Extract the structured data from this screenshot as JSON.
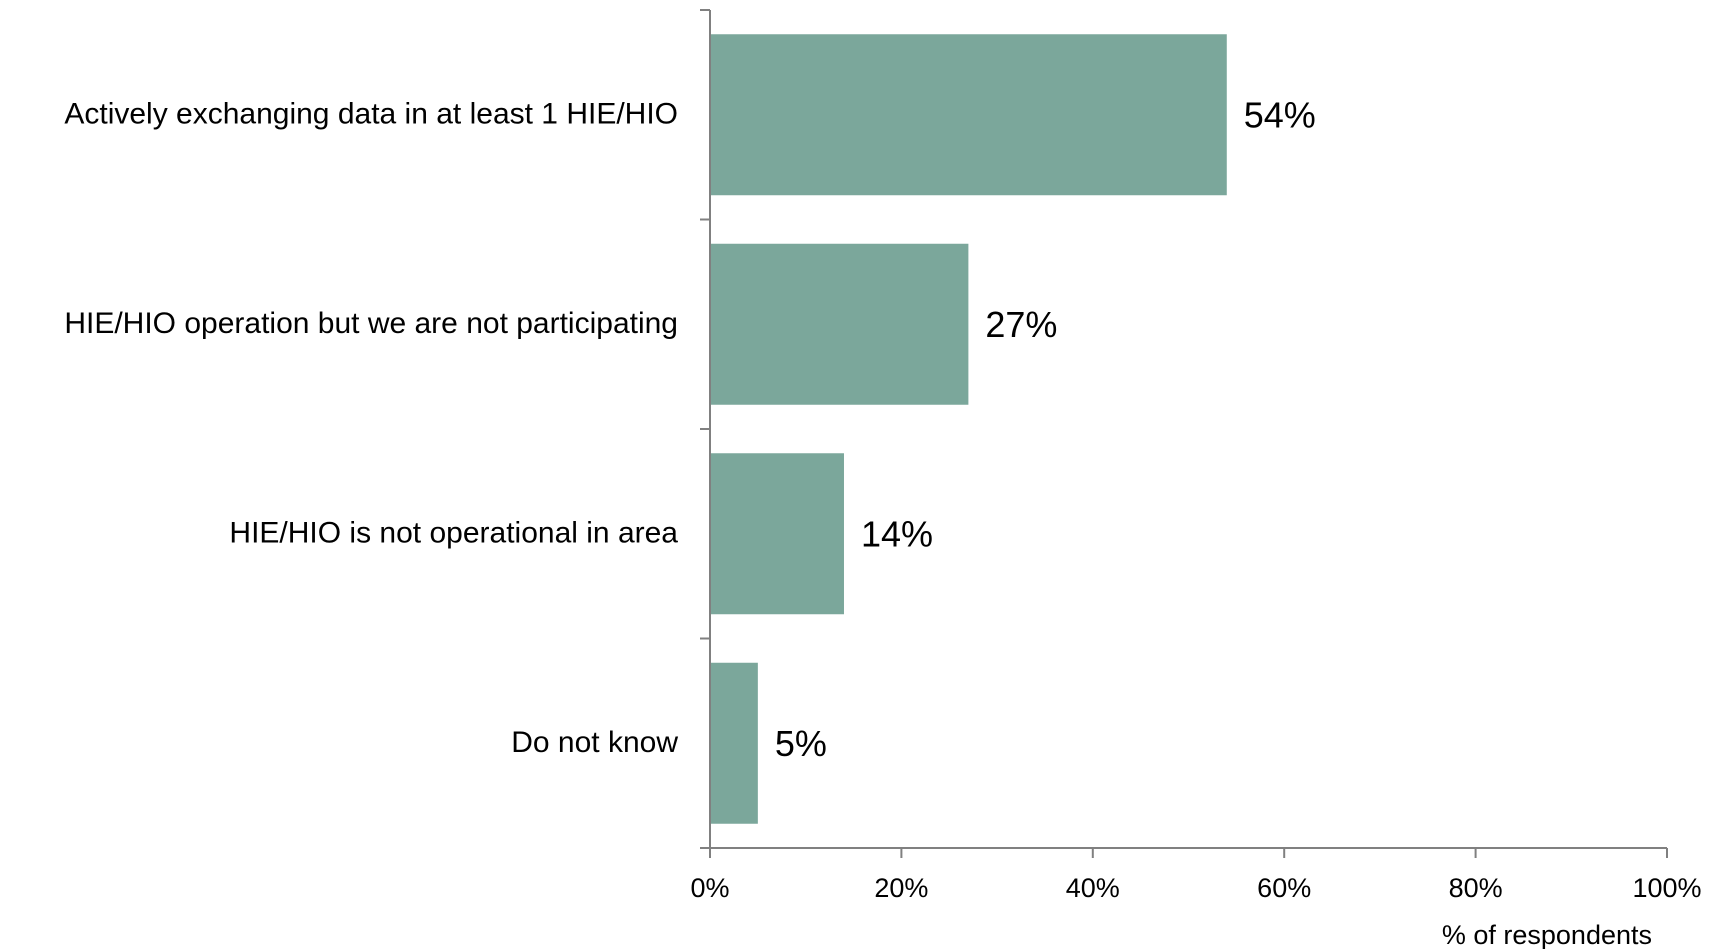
{
  "chart_data": {
    "type": "bar",
    "orientation": "horizontal",
    "categories": [
      "Actively exchanging data in at least 1 HIE/HIO",
      "HIE/HIO operation but we are not participating",
      "HIE/HIO is not operational in area",
      "Do not know"
    ],
    "values": [
      54,
      27,
      14,
      5
    ],
    "value_labels": [
      "54%",
      "27%",
      "14%",
      "5%"
    ],
    "title": "",
    "xlabel": "% of respondents",
    "ylabel": "",
    "xlim": [
      0,
      100
    ],
    "xticks": [
      "0%",
      "20%",
      "40%",
      "60%",
      "80%",
      "100%"
    ],
    "grid": false,
    "legend": "none",
    "bar_color": "#7BA79B"
  }
}
